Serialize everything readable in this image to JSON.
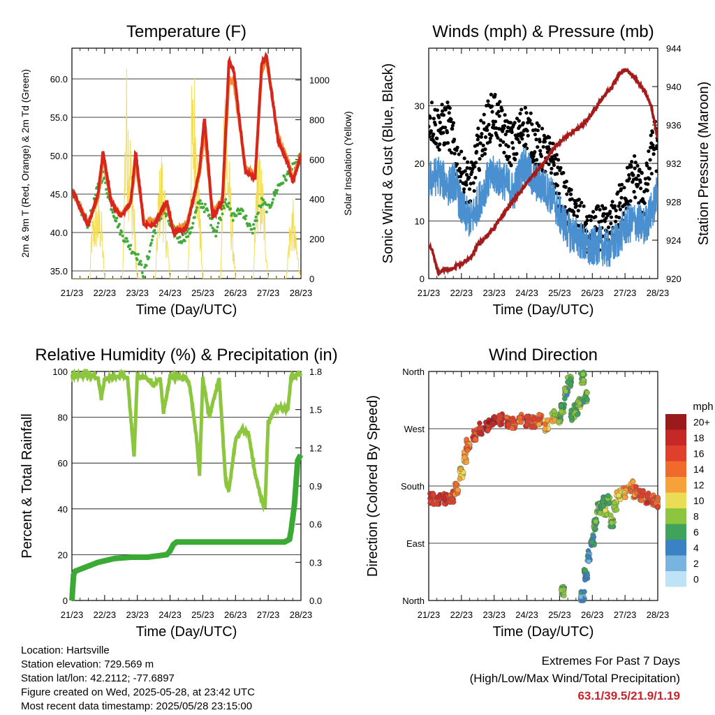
{
  "days": [
    "21/23",
    "22/23",
    "23/23",
    "24/23",
    "25/23",
    "26/23",
    "27/23",
    "28/23"
  ],
  "charts": {
    "temperature": {
      "title": "Temperature (F)",
      "xlabel": "Time (Day/UTC)",
      "ylabel_left": "2m & 9m T (Red, Orange) & 2m Td (Green)",
      "ylabel_right": "Solar Insolation (Yellow)",
      "left_ticks": [
        "35.0",
        "40.0",
        "45.0",
        "50.0",
        "55.0",
        "60.0"
      ],
      "right_ticks": [
        "0",
        "200",
        "400",
        "600",
        "800",
        "1000"
      ]
    },
    "winds": {
      "title": "Winds (mph) & Pressure (mb)",
      "xlabel": "Time (Day/UTC)",
      "ylabel_left": "Sonic Wind & Gust (Blue, Black)",
      "ylabel_right": "Station Pressure (Maroon)",
      "left_ticks": [
        "0",
        "10",
        "20",
        "30"
      ],
      "right_ticks": [
        "920",
        "924",
        "928",
        "932",
        "936",
        "940",
        "944"
      ]
    },
    "humidity": {
      "title": "Relative Humidity (%) & Precipitation (in)",
      "xlabel": "Time (Day/UTC)",
      "ylabel_left": "Percent & Total Rainfall",
      "left_ticks": [
        "0",
        "20",
        "40",
        "60",
        "80",
        "100"
      ],
      "right_ticks": [
        "0.0",
        "0.3",
        "0.6",
        "0.9",
        "1.2",
        "1.5",
        "1.8"
      ]
    },
    "direction": {
      "title": "Wind Direction",
      "xlabel": "Time (Day/UTC)",
      "ylabel_left": "Direction (Colored By Speed)",
      "left_ticks": [
        "North",
        "East",
        "South",
        "West",
        "North"
      ],
      "legend_title": "mph",
      "legend_labels": [
        "20+",
        "18",
        "16",
        "14",
        "12",
        "10",
        "8",
        "6",
        "4",
        "2",
        "0"
      ],
      "legend_colors": [
        "#9b1a1a",
        "#c62828",
        "#e0402b",
        "#f06a2c",
        "#f7a13a",
        "#e8dd55",
        "#8cc63f",
        "#3fa35b",
        "#3b82c4",
        "#79b3e0",
        "#bfe3f6"
      ]
    }
  },
  "chart_data": [
    {
      "type": "line",
      "title": "Temperature (F)",
      "xlabel": "Time (Day/UTC)",
      "ylabel": "2m & 9m T (Red, Orange) & 2m Td (Green)",
      "y2label": "Solar Insolation (Yellow)",
      "x_range": [
        21,
        28
      ],
      "ylim": [
        34,
        64
      ],
      "y2lim": [
        0,
        1160
      ],
      "colors": {
        "t2m": "#d7261e",
        "t9m": "#f28a30",
        "td": "#44aa3b",
        "solar": "#f3dc55"
      },
      "series": [
        {
          "name": "2m T",
          "x": [
            21.0,
            21.5,
            21.8,
            21.95,
            22.2,
            22.5,
            22.8,
            22.95,
            23.2,
            23.5,
            23.9,
            24.1,
            24.5,
            24.9,
            25.05,
            25.3,
            25.6,
            25.8,
            25.95,
            26.3,
            26.6,
            26.8,
            26.95,
            27.3,
            27.6,
            27.75,
            28.0
          ],
          "y": [
            45.5,
            41,
            45,
            50.5,
            44,
            42,
            44,
            50.5,
            41,
            41,
            44,
            40,
            40.5,
            48,
            55,
            42,
            44,
            62.5,
            61,
            48,
            47,
            62,
            63,
            52,
            49,
            46.5,
            50
          ]
        },
        {
          "name": "9m T",
          "x": [
            21.0,
            21.5,
            21.8,
            21.95,
            22.2,
            22.5,
            22.8,
            22.95,
            23.2,
            23.5,
            23.9,
            24.1,
            24.5,
            24.9,
            25.05,
            25.3,
            25.6,
            25.8,
            25.95,
            26.3,
            26.6,
            26.8,
            26.95,
            27.3,
            27.6,
            27.75,
            28.0
          ],
          "y": [
            45.3,
            41.3,
            44.5,
            49.5,
            44.2,
            42.3,
            44,
            49.2,
            41.5,
            41.3,
            43.5,
            40.3,
            41,
            47.5,
            53,
            42.5,
            44.5,
            60,
            59.5,
            48.5,
            47.5,
            61,
            62.5,
            52.5,
            49.5,
            47,
            50.2
          ]
        },
        {
          "name": "2m Td",
          "x": [
            21.0,
            21.5,
            21.8,
            21.95,
            22.2,
            22.5,
            22.8,
            23.0,
            23.2,
            23.5,
            23.8,
            24.0,
            24.3,
            24.6,
            24.9,
            25.1,
            25.4,
            25.7,
            25.9,
            26.2,
            26.5,
            26.8,
            27.0,
            27.3,
            27.6,
            28.0
          ],
          "y": [
            45.3,
            41,
            46,
            47.5,
            43.5,
            40,
            38,
            37,
            34.5,
            40,
            43,
            41,
            39,
            40,
            44,
            43,
            40,
            44.5,
            42,
            43,
            40,
            44,
            43,
            46,
            47.5,
            49.8
          ]
        },
        {
          "name": "Solar Insolation",
          "axis": "right",
          "x": [
            21.0,
            21.55,
            21.6,
            21.75,
            21.9,
            22.0,
            22.55,
            22.65,
            22.75,
            22.85,
            23.0,
            23.55,
            23.65,
            23.75,
            23.85,
            24.0,
            24.55,
            24.65,
            24.75,
            24.85,
            25.0,
            25.55,
            25.65,
            25.75,
            25.85,
            26.0,
            26.55,
            26.65,
            26.75,
            26.85,
            27.0,
            27.55,
            27.65,
            27.75,
            27.85,
            28.0
          ],
          "y": [
            0,
            0,
            300,
            420,
            380,
            0,
            0,
            1150,
            900,
            600,
            0,
            0,
            520,
            700,
            420,
            0,
            0,
            980,
            1100,
            700,
            0,
            0,
            1150,
            800,
            500,
            0,
            0,
            700,
            650,
            500,
            0,
            0,
            300,
            420,
            220,
            0
          ]
        }
      ]
    },
    {
      "type": "scatter",
      "title": "Winds (mph) & Pressure (mb)",
      "xlabel": "Time (Day/UTC)",
      "ylabel": "Sonic Wind & Gust (Blue, Black)",
      "y2label": "Station Pressure (Maroon)",
      "x_range": [
        21,
        28
      ],
      "ylim": [
        0,
        40
      ],
      "y2lim": [
        920,
        944
      ],
      "colors": {
        "wind": "#4a90d0",
        "gust": "#000000",
        "pressure": "#a31b1b"
      },
      "series": [
        {
          "name": "Sonic Wind",
          "x": [
            21.0,
            21.3,
            21.6,
            21.8,
            22.0,
            22.3,
            22.5,
            22.8,
            23.0,
            23.3,
            23.6,
            23.9,
            24.2,
            24.5,
            24.8,
            25.0,
            25.3,
            25.6,
            25.9,
            26.2,
            26.5,
            26.8,
            27.0,
            27.3,
            27.6,
            27.9,
            28.0
          ],
          "y": [
            17,
            18,
            16,
            17,
            12,
            10,
            13,
            17,
            18,
            17,
            15,
            20,
            17,
            16,
            14,
            11,
            8,
            7,
            5,
            6,
            5,
            7,
            9,
            10,
            9,
            13,
            15
          ]
        },
        {
          "name": "Gust",
          "x": [
            21.0,
            21.3,
            21.6,
            21.8,
            22.0,
            22.3,
            22.5,
            22.8,
            23.0,
            23.3,
            23.6,
            23.9,
            24.2,
            24.5,
            24.8,
            25.0,
            25.3,
            25.6,
            25.9,
            26.2,
            26.5,
            26.8,
            27.0,
            27.3,
            27.6,
            27.9,
            28.0
          ],
          "y": [
            28,
            26,
            27,
            22,
            18,
            16,
            22,
            27,
            29,
            25,
            23,
            27,
            24,
            22,
            20,
            16,
            12,
            10,
            7,
            9,
            8,
            12,
            15,
            18,
            14,
            25,
            20
          ]
        },
        {
          "name": "Station Pressure",
          "axis": "right",
          "x": [
            21.0,
            21.1,
            21.3,
            21.5,
            21.7,
            21.9,
            22.0,
            22.3,
            22.5,
            22.8,
            23.0,
            23.3,
            23.6,
            23.9,
            24.2,
            24.5,
            24.8,
            25.1,
            25.4,
            25.7,
            26.0,
            26.3,
            26.6,
            26.8,
            27.0,
            27.3,
            27.6,
            27.8,
            28.0
          ],
          "y": [
            923.5,
            923,
            920.5,
            921,
            921,
            921.5,
            921.5,
            922.3,
            923.5,
            924.5,
            925.3,
            926.8,
            928.2,
            929.5,
            930.8,
            932,
            933.5,
            934.5,
            935.2,
            936,
            937.2,
            938.8,
            940,
            941.2,
            941.8,
            941,
            939.5,
            938,
            934.5
          ]
        }
      ]
    },
    {
      "type": "line",
      "title": "Relative Humidity (%) & Precipitation (in)",
      "xlabel": "Time (Day/UTC)",
      "ylabel": "Percent & Total Rainfall",
      "x_range": [
        21,
        28
      ],
      "ylim": [
        0,
        100
      ],
      "y2lim": [
        0,
        1.8
      ],
      "colors": {
        "rh": "#8cc63f",
        "precip": "#3aaa35"
      },
      "series": [
        {
          "name": "Relative Humidity",
          "x": [
            21.0,
            21.5,
            21.8,
            21.9,
            22.0,
            22.5,
            22.7,
            22.8,
            22.9,
            23.0,
            23.3,
            23.5,
            23.7,
            23.8,
            23.9,
            24.0,
            24.5,
            24.6,
            24.8,
            24.9,
            25.0,
            25.2,
            25.5,
            25.7,
            25.8,
            26.0,
            26.2,
            26.4,
            26.6,
            26.8,
            26.9,
            27.0,
            27.2,
            27.4,
            27.6,
            27.7,
            28.0
          ],
          "y": [
            98,
            99,
            97,
            88,
            97,
            98,
            97,
            80,
            63,
            98,
            97,
            94,
            97,
            82,
            90,
            98,
            97,
            94,
            72,
            55,
            97,
            80,
            97,
            52,
            48,
            70,
            75,
            73,
            55,
            44,
            40,
            78,
            83,
            85,
            83,
            98,
            99
          ]
        },
        {
          "name": "Total Precipitation",
          "axis": "right",
          "x": [
            21.0,
            21.05,
            21.1,
            21.3,
            21.8,
            22.3,
            22.8,
            23.3,
            23.9,
            24.0,
            24.1,
            24.2,
            24.5,
            25.0,
            25.5,
            26.0,
            26.5,
            27.0,
            27.5,
            27.65,
            27.7,
            27.8,
            27.9,
            28.0
          ],
          "y": [
            0,
            0.2,
            0.23,
            0.25,
            0.3,
            0.33,
            0.34,
            0.34,
            0.36,
            0.39,
            0.44,
            0.46,
            0.46,
            0.46,
            0.46,
            0.46,
            0.46,
            0.46,
            0.46,
            0.48,
            0.55,
            0.75,
            1.1,
            1.15
          ]
        }
      ]
    },
    {
      "type": "scatter",
      "title": "Wind Direction",
      "xlabel": "Time (Day/UTC)",
      "ylabel": "Direction (Colored By Speed)",
      "x_range": [
        21,
        28
      ],
      "ylim": [
        0,
        360
      ],
      "y_ticks": [
        "North",
        "East",
        "South",
        "West",
        "North"
      ],
      "color_scale": {
        "title": "mph",
        "min": 0,
        "max": 20
      },
      "points": [
        {
          "x": 21.1,
          "y": 160,
          "s": 17
        },
        {
          "x": 21.3,
          "y": 158,
          "s": 18
        },
        {
          "x": 21.5,
          "y": 160,
          "s": 17
        },
        {
          "x": 21.7,
          "y": 163,
          "s": 16
        },
        {
          "x": 21.85,
          "y": 175,
          "s": 13
        },
        {
          "x": 22.0,
          "y": 200,
          "s": 10
        },
        {
          "x": 22.1,
          "y": 225,
          "s": 12
        },
        {
          "x": 22.2,
          "y": 245,
          "s": 14
        },
        {
          "x": 22.4,
          "y": 260,
          "s": 16
        },
        {
          "x": 22.6,
          "y": 270,
          "s": 17
        },
        {
          "x": 22.8,
          "y": 275,
          "s": 18
        },
        {
          "x": 23.0,
          "y": 280,
          "s": 19
        },
        {
          "x": 23.2,
          "y": 285,
          "s": 18
        },
        {
          "x": 23.4,
          "y": 280,
          "s": 16
        },
        {
          "x": 23.6,
          "y": 278,
          "s": 15
        },
        {
          "x": 23.8,
          "y": 285,
          "s": 14
        },
        {
          "x": 24.0,
          "y": 282,
          "s": 16
        },
        {
          "x": 24.2,
          "y": 280,
          "s": 15
        },
        {
          "x": 24.4,
          "y": 285,
          "s": 14
        },
        {
          "x": 24.6,
          "y": 275,
          "s": 12
        },
        {
          "x": 24.8,
          "y": 290,
          "s": 10
        },
        {
          "x": 25.0,
          "y": 285,
          "s": 8
        },
        {
          "x": 25.1,
          "y": 300,
          "s": 7
        },
        {
          "x": 25.2,
          "y": 325,
          "s": 6
        },
        {
          "x": 25.3,
          "y": 345,
          "s": 7
        },
        {
          "x": 25.4,
          "y": 290,
          "s": 6
        },
        {
          "x": 25.5,
          "y": 300,
          "s": 7
        },
        {
          "x": 25.6,
          "y": 310,
          "s": 8
        },
        {
          "x": 25.7,
          "y": 350,
          "s": 7
        },
        {
          "x": 25.8,
          "y": 320,
          "s": 6
        },
        {
          "x": 25.1,
          "y": 15,
          "s": 7
        },
        {
          "x": 25.7,
          "y": 5,
          "s": 4
        },
        {
          "x": 25.8,
          "y": 40,
          "s": 5
        },
        {
          "x": 25.9,
          "y": 70,
          "s": 4
        },
        {
          "x": 26.0,
          "y": 95,
          "s": 5
        },
        {
          "x": 26.1,
          "y": 120,
          "s": 6
        },
        {
          "x": 26.2,
          "y": 145,
          "s": 7
        },
        {
          "x": 26.3,
          "y": 155,
          "s": 5
        },
        {
          "x": 26.4,
          "y": 140,
          "s": 8
        },
        {
          "x": 26.5,
          "y": 160,
          "s": 7
        },
        {
          "x": 26.6,
          "y": 125,
          "s": 8
        },
        {
          "x": 26.7,
          "y": 150,
          "s": 9
        },
        {
          "x": 26.8,
          "y": 165,
          "s": 10
        },
        {
          "x": 27.0,
          "y": 170,
          "s": 12
        },
        {
          "x": 27.2,
          "y": 180,
          "s": 13
        },
        {
          "x": 27.3,
          "y": 170,
          "s": 14
        },
        {
          "x": 27.5,
          "y": 165,
          "s": 15
        },
        {
          "x": 27.7,
          "y": 160,
          "s": 16
        },
        {
          "x": 27.9,
          "y": 157,
          "s": 15
        },
        {
          "x": 28.0,
          "y": 155,
          "s": 14
        }
      ]
    }
  ],
  "info": {
    "location": "Location: Hartsville",
    "elevation": "Station elevation: 729.569 m",
    "latlon": "Station lat/lon: 42.2112; -77.6897",
    "created": "Figure created on Wed, 2025-05-28, at 23:42 UTC",
    "recent": "Most recent data timestamp: 2025/05/28 23:15:00"
  },
  "extremes": {
    "line1": "Extremes For Past 7 Days",
    "line2": "(High/Low/Max Wind/Total Precipitation)",
    "values": "63.1/39.5/21.9/1.19"
  }
}
